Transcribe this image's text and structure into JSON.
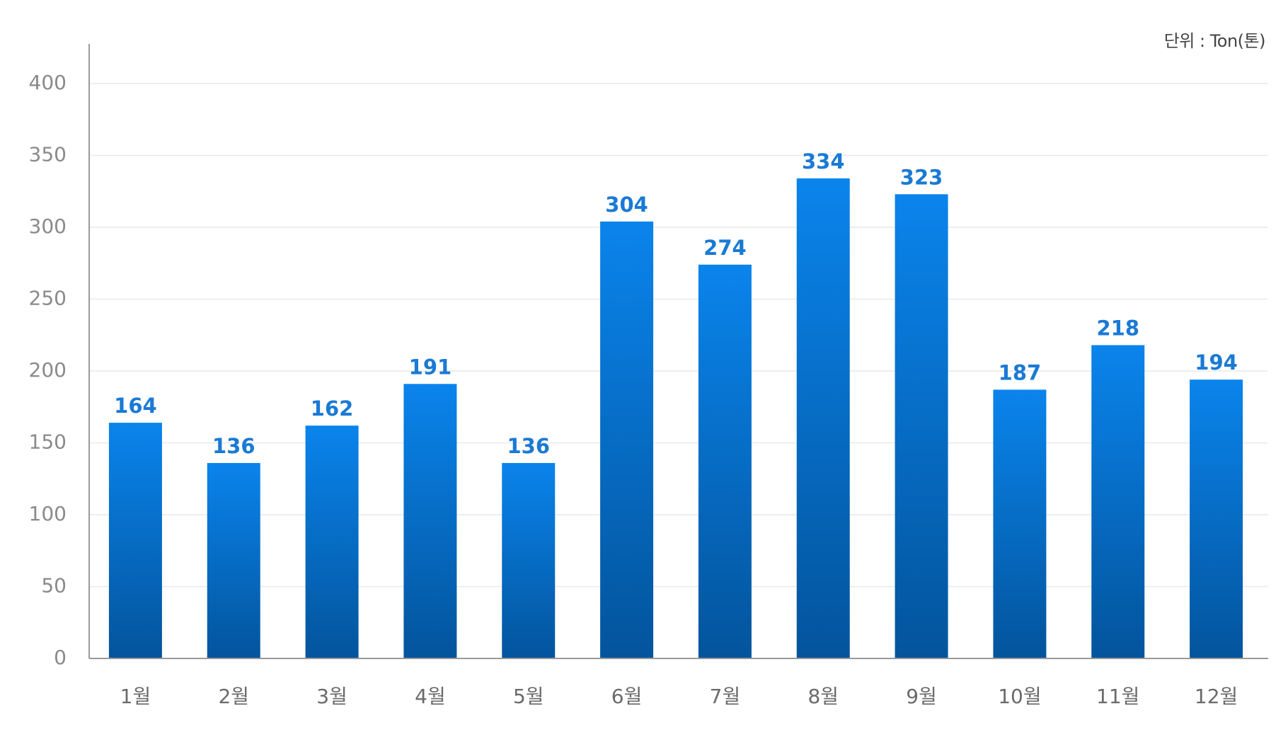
{
  "unit_label": "단위 : Ton(톤)",
  "colors": {
    "bar_top": "#0a84ec",
    "bar_bottom": "#03549c",
    "data_label": "#1a7ad4"
  },
  "chart_data": {
    "type": "bar",
    "categories": [
      "1월",
      "2월",
      "3월",
      "4월",
      "5월",
      "6월",
      "7월",
      "8월",
      "9월",
      "10월",
      "11월",
      "12월"
    ],
    "values": [
      164,
      136,
      162,
      191,
      136,
      304,
      274,
      334,
      323,
      187,
      218,
      194
    ],
    "yticks": [
      0,
      50,
      100,
      150,
      200,
      250,
      300,
      350,
      400
    ],
    "ylim": [
      0,
      400
    ],
    "title": "",
    "xlabel": "",
    "ylabel": "",
    "grid": true,
    "legend": "none"
  }
}
